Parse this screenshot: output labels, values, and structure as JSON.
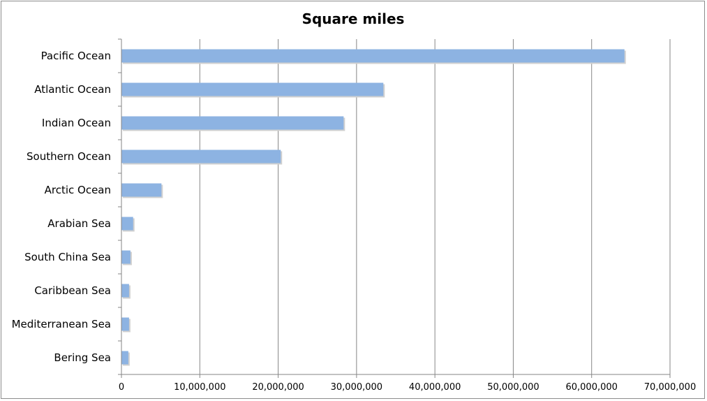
{
  "chart_data": {
    "type": "bar",
    "orientation": "horizontal",
    "title": "Square miles",
    "xlabel": "",
    "ylabel": "",
    "categories": [
      "Pacific Ocean",
      "Atlantic Ocean",
      "Indian Ocean",
      "Southern Ocean",
      "Arctic Ocean",
      "Arabian Sea",
      "South China Sea",
      "Caribbean Sea",
      "Mediterranean Sea",
      "Bering Sea"
    ],
    "values": [
      64186300,
      33420000,
      28350000,
      20327000,
      5105700,
      1491000,
      1148500,
      971400,
      969100,
      878000
    ],
    "xlim": [
      0,
      70000000
    ],
    "xticks": [
      0,
      10000000,
      20000000,
      30000000,
      40000000,
      50000000,
      60000000,
      70000000
    ],
    "xtick_labels": [
      "0",
      "10,000,000",
      "20,000,000",
      "30,000,000",
      "40,000,000",
      "50,000,000",
      "60,000,000",
      "70,000,000"
    ],
    "grid": "vertical major gridlines",
    "legend": "none",
    "bar_color": "#8db3e2",
    "gridline_color": "#868686"
  }
}
